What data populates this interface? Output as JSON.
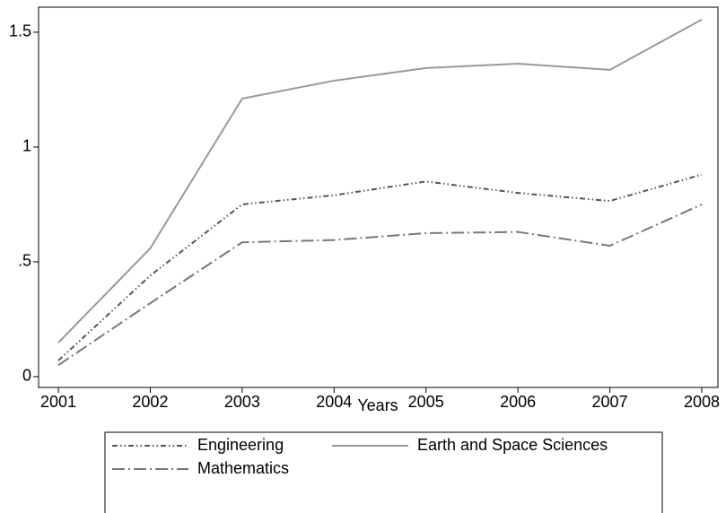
{
  "chart_data": {
    "type": "line",
    "x_label": "Years",
    "x": [
      2001,
      2002,
      2003,
      2004,
      2005,
      2006,
      2007,
      2008
    ],
    "xlim": [
      2000.785,
      2008.176
    ],
    "xticks": [
      2001,
      2002,
      2003,
      2004,
      2005,
      2006,
      2007,
      2008
    ],
    "ylim": [
      -0.047,
      1.609
    ],
    "yticks": [
      0,
      {
        "value": 0.5,
        "label": ".5"
      },
      1,
      1.5
    ],
    "series": [
      {
        "name": "Engineering",
        "color": "#555555",
        "dash": "dashdot",
        "values": [
          0.07,
          0.44,
          0.75,
          0.79,
          0.85,
          0.8,
          0.765,
          0.88
        ]
      },
      {
        "name": "Earth and Space Sciences",
        "color": "#999999",
        "dash": "solid",
        "values": [
          0.148,
          0.559,
          1.211,
          1.289,
          1.344,
          1.363,
          1.336,
          1.555
        ]
      },
      {
        "name": "Mathematics",
        "color": "#777777",
        "dash": "longdashdot",
        "values": [
          0.05,
          0.32,
          0.585,
          0.595,
          0.625,
          0.63,
          0.57,
          0.75
        ]
      }
    ]
  }
}
